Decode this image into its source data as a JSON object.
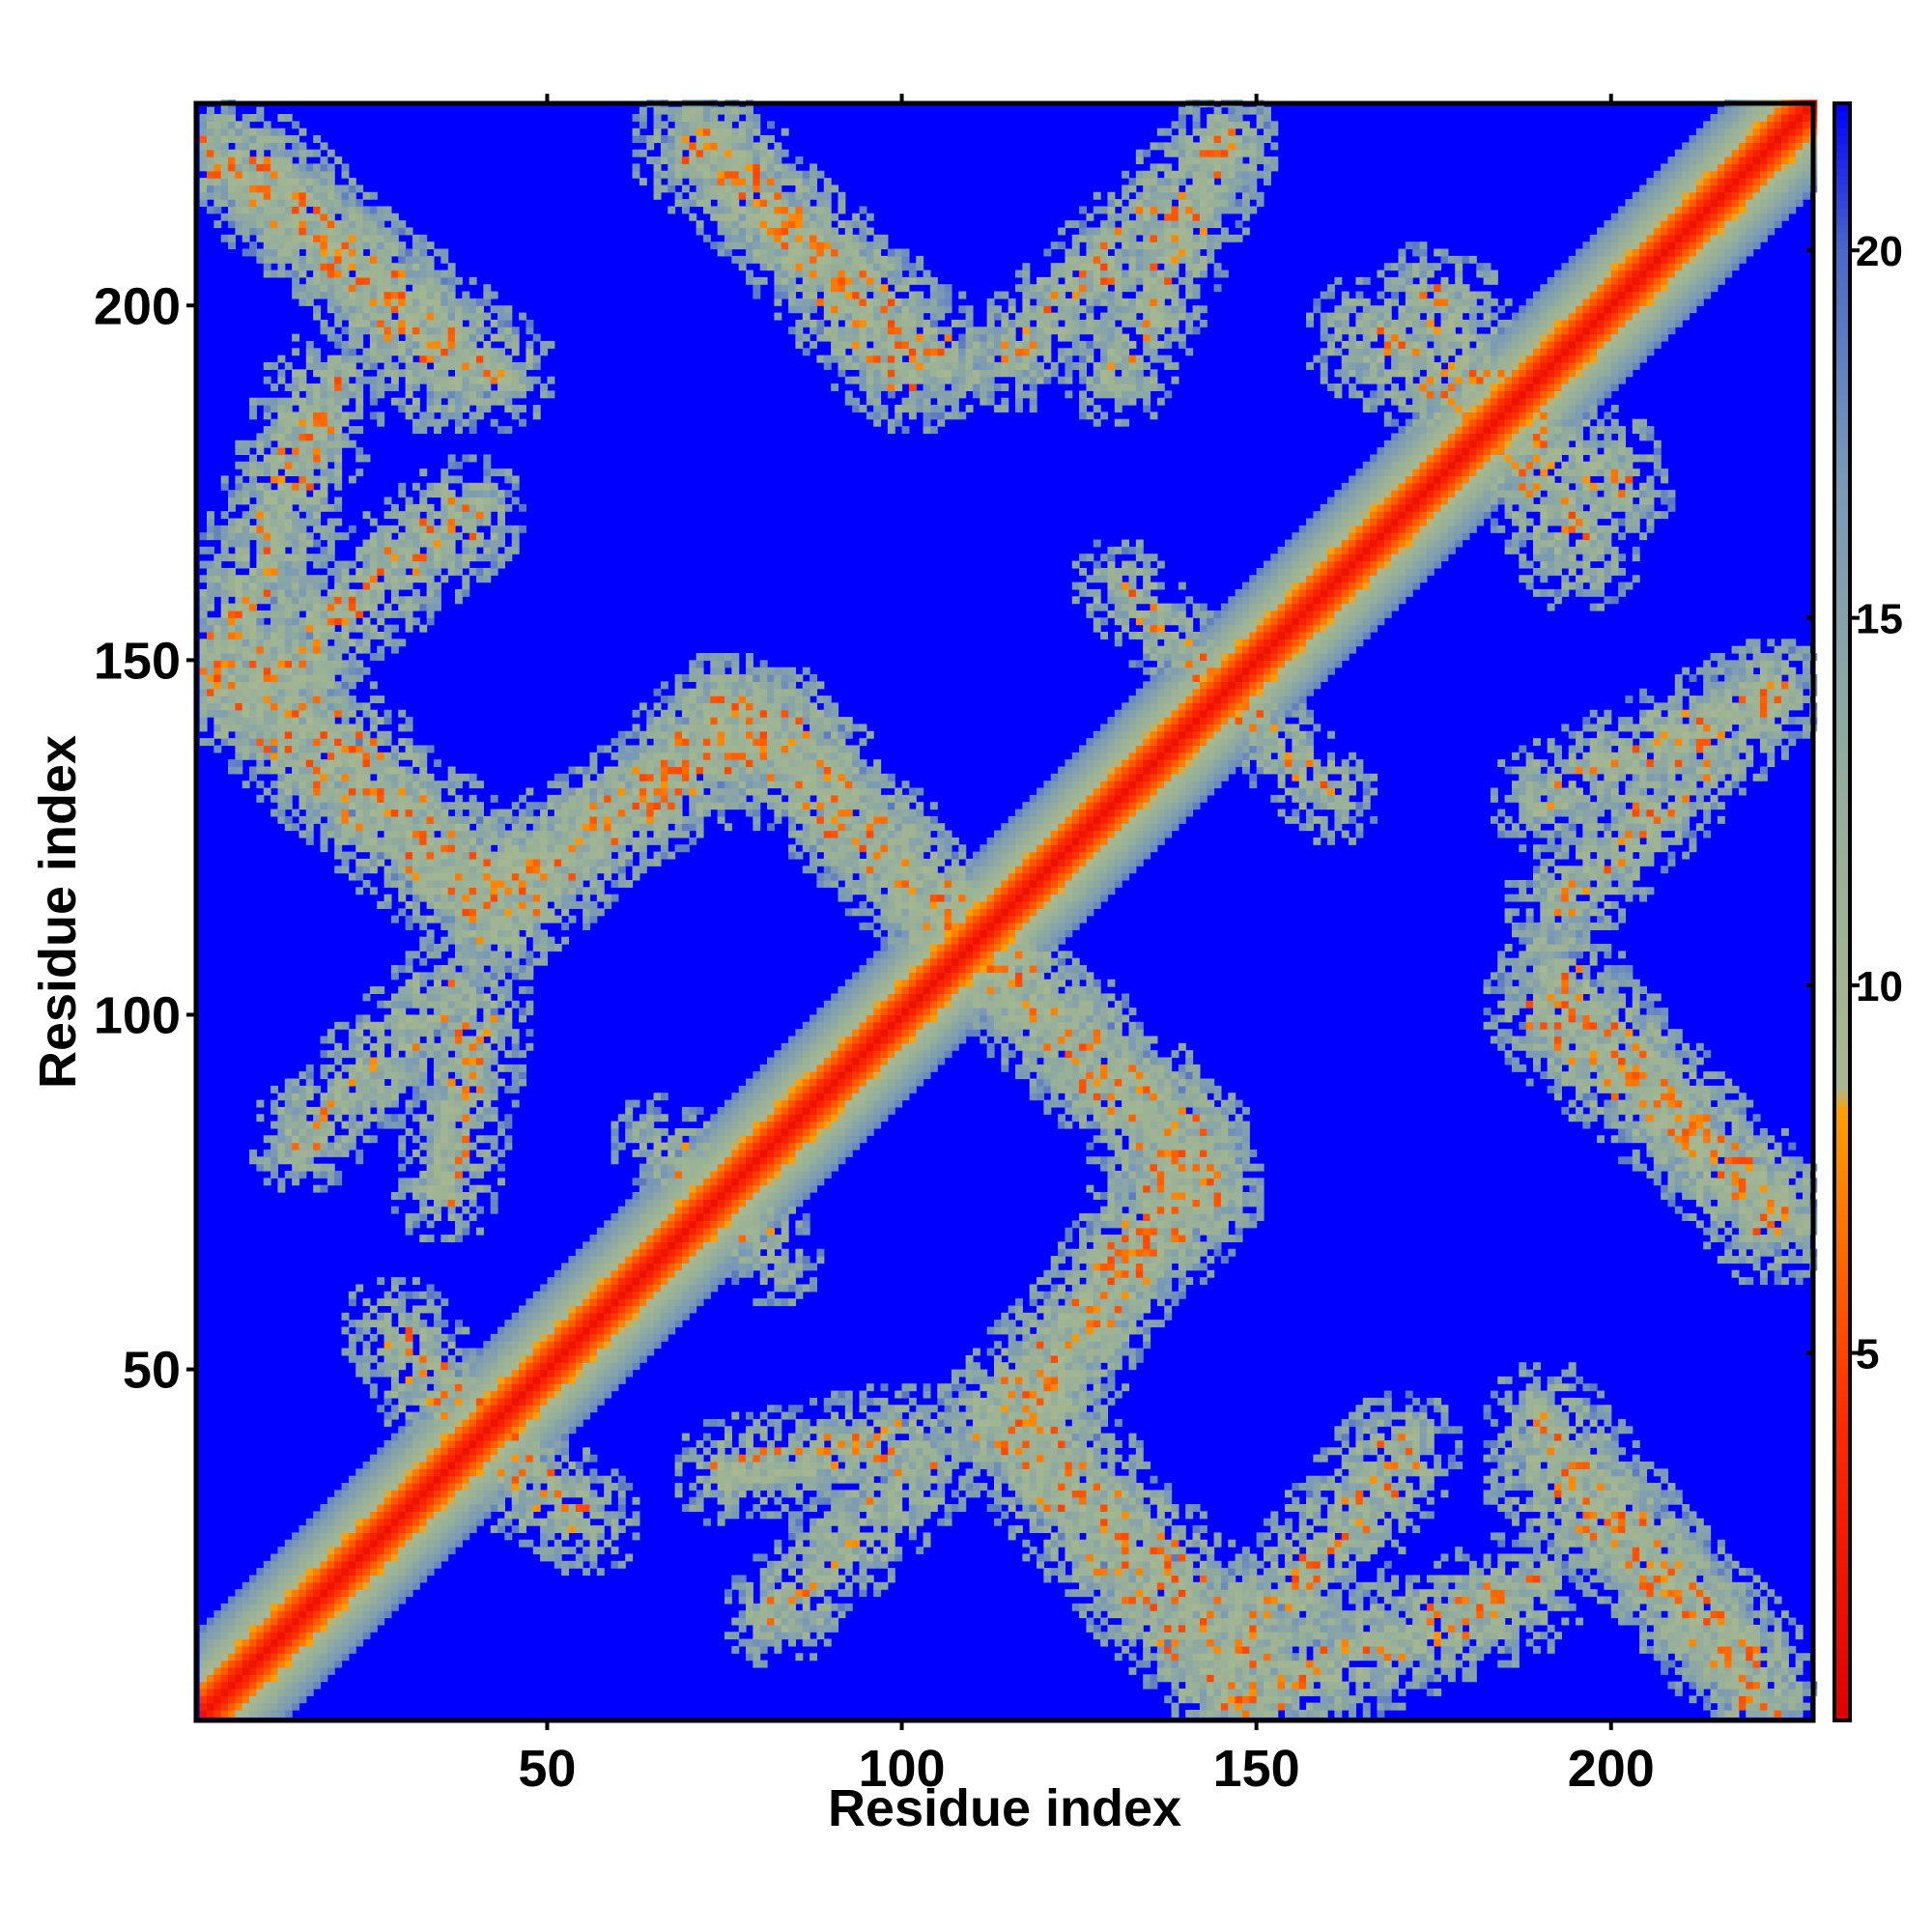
{
  "chart_data": {
    "type": "heatmap",
    "title": "",
    "xlabel": "Residue index",
    "ylabel": "Residue index",
    "xlim": [
      1,
      228
    ],
    "ylim": [
      1,
      228
    ],
    "x_ticks": [
      50,
      100,
      150,
      200
    ],
    "y_ticks": [
      50,
      100,
      150,
      200
    ],
    "x_tick_labels": [
      "50",
      "100",
      "150",
      "200"
    ],
    "y_tick_labels": [
      "50",
      "100",
      "150",
      "200"
    ],
    "colorbar": {
      "range": [
        0,
        22
      ],
      "ticks": [
        5,
        10,
        15,
        20
      ],
      "tick_labels": [
        "5",
        "10",
        "15",
        "20"
      ],
      "colors": [
        {
          "v": 0,
          "color": "#e00000"
        },
        {
          "v": 4,
          "color": "#ff2a00"
        },
        {
          "v": 7,
          "color": "#ff7a00"
        },
        {
          "v": 8.3,
          "color": "#ffa000"
        },
        {
          "v": 8.6,
          "color": "#a8b890"
        },
        {
          "v": 12,
          "color": "#98b098"
        },
        {
          "v": 17,
          "color": "#7898b8"
        },
        {
          "v": 20,
          "color": "#4a68c8"
        },
        {
          "v": 22,
          "color": "#0000ff"
        }
      ]
    },
    "background_color": "#0000ff",
    "description_of_values": "symmetric residue-residue distance map; low values (red) along main diagonal, intermediate values (green-gray) in off-diagonal bands, high values (blue) elsewhere",
    "contact_bands": [
      {
        "from": [
          1,
          1
        ],
        "to": [
          228,
          228
        ],
        "width": 10
      },
      {
        "from": [
          3,
          221
        ],
        "to": [
          42,
          190
        ],
        "width": 12
      },
      {
        "from": [
          70,
          222
        ],
        "to": [
          105,
          192
        ],
        "width": 12
      },
      {
        "from": [
          3,
          147
        ],
        "to": [
          42,
          112
        ],
        "width": 12
      },
      {
        "from": [
          18,
          187
        ],
        "to": [
          3,
          148
        ],
        "width": 12
      },
      {
        "from": [
          45,
          115
        ],
        "to": [
          75,
          142
        ],
        "width": 12
      },
      {
        "from": [
          75,
          142
        ],
        "to": [
          105,
          114
        ],
        "width": 12
      },
      {
        "from": [
          105,
          114
        ],
        "to": [
          140,
          82
        ],
        "width": 12
      },
      {
        "from": [
          140,
          82
        ],
        "to": [
          118,
          42
        ],
        "width": 12
      },
      {
        "from": [
          118,
          42
        ],
        "to": [
          148,
          10
        ],
        "width": 12
      },
      {
        "from": [
          148,
          10
        ],
        "to": [
          170,
          38
        ],
        "width": 12
      },
      {
        "from": [
          190,
          35
        ],
        "to": [
          218,
          10
        ],
        "width": 12
      },
      {
        "from": [
          190,
          100
        ],
        "to": [
          222,
          73
        ],
        "width": 12
      },
      {
        "from": [
          190,
          130
        ],
        "to": [
          222,
          145
        ],
        "width": 10
      },
      {
        "from": [
          165,
          195
        ],
        "to": [
          200,
          175
        ],
        "width": 12
      },
      {
        "from": [
          145,
          222
        ],
        "to": [
          115,
          192
        ],
        "width": 10
      },
      {
        "from": [
          130,
          160
        ],
        "to": [
          160,
          130
        ],
        "width": 8
      },
      {
        "from": [
          65,
          82
        ],
        "to": [
          80,
          68
        ],
        "width": 8
      },
      {
        "from": [
          35,
          102
        ],
        "to": [
          15,
          82
        ],
        "width": 10
      },
      {
        "from": [
          75,
          35
        ],
        "to": [
          100,
          40
        ],
        "width": 10
      },
      {
        "from": [
          32,
          48
        ],
        "to": [
          55,
          28
        ],
        "width": 10
      }
    ]
  }
}
